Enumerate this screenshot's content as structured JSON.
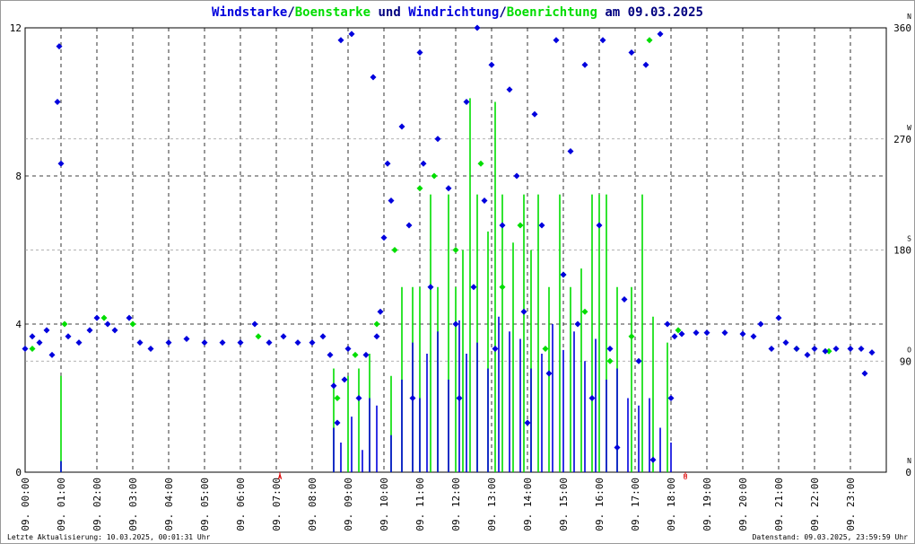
{
  "chart_data": {
    "type": "wind",
    "title_connectors": [
      "/",
      " und ",
      "/",
      " am 09.03.2025"
    ],
    "connector_color": "#000080",
    "xlim": [
      0,
      24
    ],
    "xticks": [
      {
        "value": 0,
        "label": "09. 00:00"
      },
      {
        "value": 1,
        "label": "09. 01:00"
      },
      {
        "value": 2,
        "label": "09. 02:00"
      },
      {
        "value": 3,
        "label": "09. 03:00"
      },
      {
        "value": 4,
        "label": "09. 04:00"
      },
      {
        "value": 5,
        "label": "09. 05:00"
      },
      {
        "value": 6,
        "label": "09. 06:00"
      },
      {
        "value": 7,
        "label": "09. 07:00"
      },
      {
        "value": 8,
        "label": "09. 08:00"
      },
      {
        "value": 9,
        "label": "09. 09:00"
      },
      {
        "value": 10,
        "label": "09. 10:00"
      },
      {
        "value": 11,
        "label": "09. 11:00"
      },
      {
        "value": 12,
        "label": "09. 12:00"
      },
      {
        "value": 13,
        "label": "09. 13:00"
      },
      {
        "value": 14,
        "label": "09. 14:00"
      },
      {
        "value": 15,
        "label": "09. 15:00"
      },
      {
        "value": 16,
        "label": "09. 16:00"
      },
      {
        "value": 17,
        "label": "09. 17:00"
      },
      {
        "value": 18,
        "label": "09. 18:00"
      },
      {
        "value": 19,
        "label": "09. 19:00"
      },
      {
        "value": 20,
        "label": "09. 20:00"
      },
      {
        "value": 21,
        "label": "09. 21:00"
      },
      {
        "value": 22,
        "label": "09. 22:00"
      },
      {
        "value": 23,
        "label": "09. 23:00"
      }
    ],
    "ylim": [
      0,
      12
    ],
    "yticks": [
      0,
      4,
      8,
      12
    ],
    "y2lim": [
      0,
      360
    ],
    "y2ticks": [
      {
        "value": 0,
        "label": "0",
        "dir": "N"
      },
      {
        "value": 90,
        "label": "90",
        "dir": "O"
      },
      {
        "value": 180,
        "label": "180",
        "dir": "S"
      },
      {
        "value": 270,
        "label": "270",
        "dir": "W"
      },
      {
        "value": 360,
        "label": "360",
        "dir": "N"
      }
    ],
    "grid": true,
    "sun_markers": [
      {
        "x": 7.1,
        "label": "A"
      },
      {
        "x": 18.4,
        "label": "U"
      }
    ],
    "sun_color": "#dd0000",
    "series": [
      {
        "name": "Windstarke",
        "color": "#0000dd",
        "mark": "bars",
        "axis": "y",
        "x": [
          1.0,
          8.6,
          8.8,
          9.1,
          9.4,
          9.6,
          9.8,
          10.2,
          10.5,
          10.8,
          11.0,
          11.2,
          11.5,
          11.8,
          12.1,
          12.3,
          12.6,
          12.9,
          13.2,
          13.5,
          13.8,
          14.1,
          14.4,
          14.7,
          15.0,
          15.3,
          15.6,
          15.9,
          16.2,
          16.5,
          16.8,
          17.1,
          17.4,
          17.7,
          18.0
        ],
        "values": [
          0.3,
          1.2,
          0.8,
          1.5,
          0.6,
          2,
          1.8,
          1,
          2.5,
          3.5,
          2,
          3.2,
          3.8,
          2.5,
          4.1,
          3.2,
          3.5,
          2.8,
          4.2,
          3.8,
          3.6,
          2.8,
          3.2,
          4,
          3.3,
          3.8,
          3,
          3.6,
          2.5,
          2.8,
          2,
          1.8,
          2,
          1.2,
          0.8
        ]
      },
      {
        "name": "Boenstarke",
        "color": "#00dd00",
        "mark": "bars",
        "axis": "y",
        "x": [
          1.0,
          8.6,
          9.0,
          9.3,
          9.6,
          10.2,
          10.5,
          10.8,
          11.0,
          11.3,
          11.5,
          11.8,
          12.0,
          12.2,
          12.4,
          12.6,
          12.9,
          13.1,
          13.3,
          13.6,
          13.9,
          14.1,
          14.3,
          14.6,
          14.9,
          15.2,
          15.5,
          15.8,
          16.0,
          16.2,
          16.5,
          16.9,
          17.2,
          17.5,
          17.9
        ],
        "values": [
          2.6,
          2.8,
          2.6,
          2.8,
          3.2,
          2.6,
          5,
          5,
          5,
          7.5,
          5,
          7.5,
          5,
          6,
          10.1,
          7.5,
          6.5,
          10,
          7.5,
          6.2,
          7.5,
          6,
          7.5,
          5,
          7.5,
          5,
          5.5,
          7.5,
          7.5,
          7.5,
          5,
          5,
          7.5,
          4.2,
          3.5
        ]
      },
      {
        "name": "Windrichtung",
        "color": "#0000dd",
        "mark": "diamonds",
        "axis": "y2",
        "x": [
          0.0,
          0.2,
          0.4,
          0.6,
          0.75,
          0.9,
          0.95,
          1.0,
          1.2,
          1.5,
          1.8,
          2.0,
          2.3,
          2.5,
          2.9,
          3.2,
          3.5,
          4.0,
          4.5,
          5.0,
          5.5,
          6.0,
          6.4,
          6.8,
          7.2,
          7.6,
          8.0,
          8.3,
          8.5,
          8.6,
          8.7,
          8.8,
          8.9,
          9.0,
          9.1,
          9.3,
          9.5,
          9.7,
          9.8,
          9.9,
          10.0,
          10.1,
          10.2,
          10.5,
          10.7,
          10.8,
          11.0,
          11.1,
          11.3,
          11.5,
          11.8,
          12.0,
          12.1,
          12.3,
          12.5,
          12.6,
          12.8,
          13.0,
          13.1,
          13.3,
          13.5,
          13.7,
          13.9,
          14.0,
          14.2,
          14.4,
          14.6,
          14.8,
          15.0,
          15.2,
          15.4,
          15.6,
          15.8,
          16.0,
          16.1,
          16.3,
          16.5,
          16.7,
          16.9,
          17.1,
          17.3,
          17.5,
          17.7,
          17.9,
          18.0,
          18.1,
          18.3,
          18.7,
          19.0,
          19.5,
          20.0,
          20.3,
          20.5,
          20.8,
          21.0,
          21.2,
          21.5,
          21.8,
          22.0,
          22.3,
          22.6,
          23.0,
          23.3,
          23.4,
          23.6
        ],
        "values": [
          100,
          110,
          105,
          115,
          95,
          300,
          345,
          250,
          110,
          105,
          115,
          125,
          120,
          115,
          125,
          105,
          100,
          105,
          108,
          105,
          105,
          105,
          120,
          105,
          110,
          105,
          105,
          110,
          95,
          70,
          40,
          350,
          75,
          100,
          355,
          60,
          95,
          320,
          110,
          130,
          190,
          250,
          220,
          280,
          200,
          60,
          340,
          250,
          150,
          270,
          230,
          120,
          60,
          300,
          150,
          360,
          220,
          330,
          100,
          200,
          310,
          240,
          130,
          40,
          290,
          200,
          80,
          350,
          160,
          260,
          120,
          330,
          60,
          200,
          350,
          100,
          20,
          140,
          340,
          90,
          330,
          10,
          355,
          120,
          60,
          110,
          112,
          113,
          113,
          113,
          112,
          110,
          120,
          100,
          125,
          105,
          100,
          95,
          100,
          98,
          100,
          100,
          100,
          80,
          97
        ]
      },
      {
        "name": "Boenrichtung",
        "color": "#00dd00",
        "mark": "diamonds",
        "axis": "y2",
        "x": [
          0.2,
          1.1,
          2.2,
          3.0,
          6.5,
          8.7,
          9.2,
          9.8,
          10.3,
          11.0,
          11.4,
          12.0,
          12.7,
          13.3,
          13.8,
          14.5,
          15.0,
          15.6,
          16.3,
          16.9,
          17.4,
          18.2,
          21.5,
          22.4
        ],
        "values": [
          100,
          120,
          125,
          120,
          110,
          60,
          95,
          120,
          180,
          230,
          240,
          180,
          250,
          150,
          200,
          100,
          160,
          130,
          90,
          110,
          350,
          115,
          100,
          98
        ]
      }
    ],
    "draw_order": [
      1,
      0,
      3,
      2
    ],
    "footer_left": "Letzte Aktualisierung: 10.03.2025, 00:01:31 Uhr",
    "footer_right": "Datenstand: 09.03.2025, 23:59:59 Uhr"
  }
}
